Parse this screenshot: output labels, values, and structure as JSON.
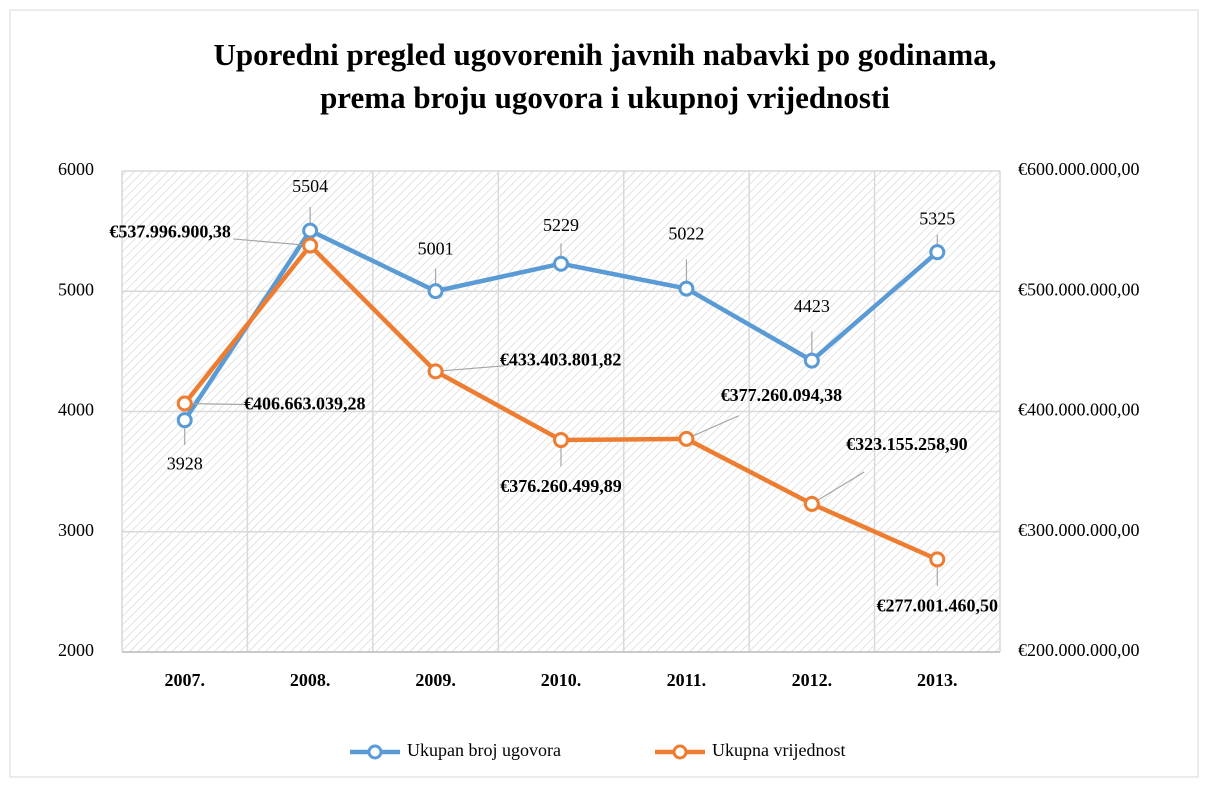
{
  "chart_data": {
    "type": "line",
    "title": [
      "Uporedni pregled ugovorenih javnih nabavki po godinama,",
      "prema broju ugovora i ukupnoj vrijednosti"
    ],
    "categories": [
      "2007.",
      "2008.",
      "2009.",
      "2010.",
      "2011.",
      "2012.",
      "2013."
    ],
    "series": [
      {
        "name": "Ukupan broj ugovora",
        "color": "#5b9bd5",
        "axis": "y",
        "values": [
          3928,
          5504,
          5001,
          5229,
          5022,
          4423,
          5325
        ]
      },
      {
        "name": "Ukupna vrijednost",
        "color": "#ed7d31",
        "axis": "y2",
        "values": [
          406663039.28,
          537996900.38,
          433403801.82,
          376260499.89,
          377260094.38,
          323155258.9,
          277001460.5
        ],
        "value_labels": [
          "€406.663.039,28",
          "€537.996.900,38",
          "€433.403.801,82",
          "€376.260.499,89",
          "€377.260.094,38",
          "€323.155.258,90",
          "€277.001.460,50"
        ]
      }
    ],
    "ylim": [
      2000,
      6000
    ],
    "yticks": [
      2000,
      3000,
      4000,
      5000,
      6000
    ],
    "y2lim": [
      200000000,
      600000000
    ],
    "y2ticks": [
      {
        "value": 200000000,
        "label": "€200.000.000,00"
      },
      {
        "value": 300000000,
        "label": "€300.000.000,00"
      },
      {
        "value": 400000000,
        "label": "€400.000.000,00"
      },
      {
        "value": 500000000,
        "label": "€500.000.000,00"
      },
      {
        "value": 600000000,
        "label": "€600.000.000,00"
      }
    ],
    "grid": true,
    "legend": "bottom"
  }
}
